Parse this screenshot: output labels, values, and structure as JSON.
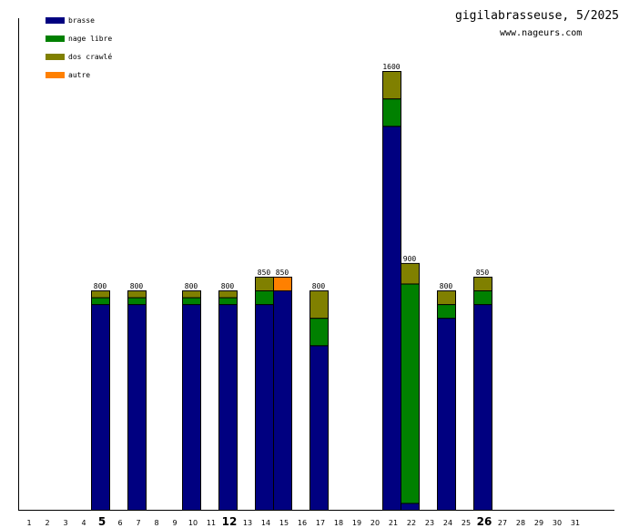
{
  "chart_data": {
    "type": "bar",
    "stacked": true,
    "title": "gigilabrasseuse, 5/2025",
    "subtitle": "www.nageurs.com",
    "categories": [
      "1",
      "2",
      "3",
      "4",
      "5",
      "6",
      "7",
      "8",
      "9",
      "10",
      "11",
      "12",
      "13",
      "14",
      "15",
      "16",
      "17",
      "18",
      "19",
      "20",
      "21",
      "22",
      "23",
      "24",
      "25",
      "26",
      "27",
      "28",
      "29",
      "30",
      "31"
    ],
    "bold_categories": [
      "5",
      "12",
      "26"
    ],
    "ylim": [
      0,
      1600
    ],
    "legend_position": "top-left",
    "series": [
      {
        "name": "brasse",
        "color": "#000080",
        "values": [
          0,
          0,
          0,
          0,
          750,
          0,
          750,
          0,
          0,
          750,
          0,
          750,
          0,
          750,
          800,
          0,
          600,
          0,
          0,
          0,
          1400,
          25,
          0,
          700,
          0,
          750,
          0,
          0,
          0,
          0,
          0
        ]
      },
      {
        "name": "nage libre",
        "color": "#008000",
        "values": [
          0,
          0,
          0,
          0,
          25,
          0,
          25,
          0,
          0,
          25,
          0,
          25,
          0,
          50,
          0,
          0,
          100,
          0,
          0,
          0,
          100,
          800,
          0,
          50,
          0,
          50,
          0,
          0,
          0,
          0,
          0
        ]
      },
      {
        "name": "dos crawlé",
        "color": "#808000",
        "values": [
          0,
          0,
          0,
          0,
          25,
          0,
          25,
          0,
          0,
          25,
          0,
          25,
          0,
          50,
          0,
          0,
          100,
          0,
          0,
          0,
          100,
          75,
          0,
          50,
          0,
          50,
          0,
          0,
          0,
          0,
          0
        ]
      },
      {
        "name": "autre",
        "color": "#ff8000",
        "values": [
          0,
          0,
          0,
          0,
          0,
          0,
          0,
          0,
          0,
          0,
          0,
          0,
          0,
          0,
          50,
          0,
          0,
          0,
          0,
          0,
          0,
          0,
          0,
          0,
          0,
          0,
          0,
          0,
          0,
          0,
          0
        ]
      }
    ],
    "totals_labels": [
      "",
      "",
      "",
      "",
      "800",
      "",
      "800",
      "",
      "",
      "800",
      "",
      "800",
      "",
      "850",
      "850",
      "",
      "800",
      "",
      "",
      "",
      "1600",
      "900",
      "",
      "800",
      "",
      "850",
      "",
      "",
      "",
      "",
      ""
    ]
  }
}
